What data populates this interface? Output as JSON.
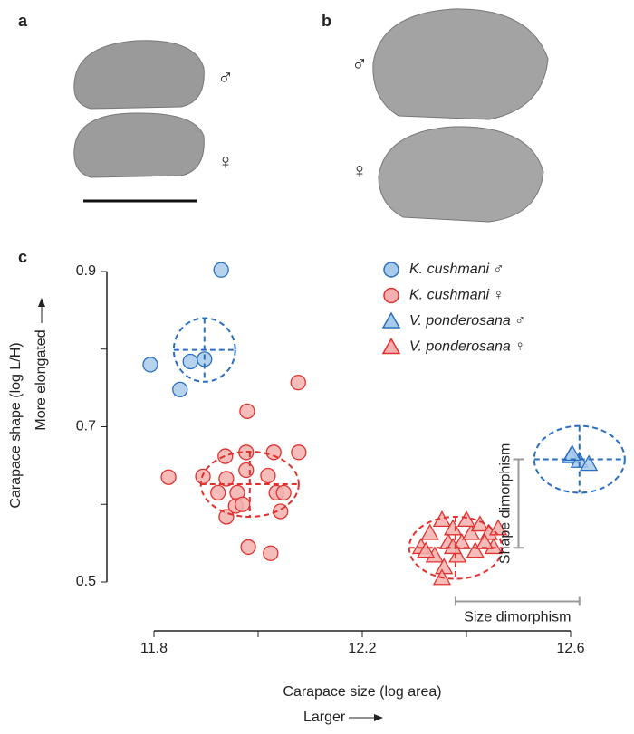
{
  "panels": [
    {
      "label": "a",
      "symbols": [
        "♂",
        "♀"
      ]
    },
    {
      "label": "b",
      "symbols": [
        "♂",
        "♀"
      ]
    }
  ],
  "chart_data": {
    "type": "scatter",
    "panel_label": "c",
    "x_label": "Carapace size (log area)",
    "x_direction": "Larger",
    "y_label": "Carapace shape (log L/H)",
    "y_direction": "More elongated",
    "xlim": [
      11.8,
      12.6
    ],
    "xticks": [
      11.8,
      12.2,
      12.6
    ],
    "xminor_ticks": [
      12.0,
      12.4
    ],
    "ylim": [
      0.5,
      0.9
    ],
    "yticks": [
      0.9,
      0.7,
      0.5
    ],
    "yminor_ticks": [
      0.8,
      0.6
    ],
    "legend": "upper right",
    "series": [
      {
        "name": "K. cushmani ♂",
        "marker": "circle",
        "color": "#2a6fbf",
        "fill": "#a9cbeb",
        "x": [
          11.929,
          11.793,
          11.85,
          11.87,
          11.897
        ],
        "y": [
          0.902,
          0.78,
          0.748,
          0.784,
          0.787
        ],
        "ellipse": {
          "center": [
            11.897,
            0.799
          ],
          "radius": [
            0.059,
            0.041
          ]
        }
      },
      {
        "name": "K. cushmani ♀",
        "marker": "circle",
        "color": "#e0312f",
        "fill": "#f3b0ae",
        "x": [
          12.077,
          11.828,
          11.894,
          11.937,
          11.979,
          11.977,
          11.977,
          11.939,
          11.923,
          11.96,
          11.957,
          11.97,
          11.939,
          12.019,
          12.035,
          12.049,
          12.03,
          12.078,
          12.043,
          11.981,
          12.024
        ],
        "y": [
          0.757,
          0.635,
          0.636,
          0.662,
          0.72,
          0.667,
          0.644,
          0.633,
          0.615,
          0.615,
          0.598,
          0.6,
          0.584,
          0.637,
          0.615,
          0.615,
          0.667,
          0.667,
          0.591,
          0.545,
          0.537
        ],
        "ellipse": {
          "center": [
            11.984,
            0.626
          ],
          "radius": [
            0.094,
            0.042
          ]
        }
      },
      {
        "name": "V. ponderosana ♂",
        "marker": "triangle",
        "color": "#2a6fbf",
        "fill": "#a9cbeb",
        "x": [
          12.6,
          12.617,
          12.635,
          12.603
        ],
        "y": [
          0.662,
          0.656,
          0.652,
          0.665
        ],
        "ellipse": {
          "center": [
            12.617,
            0.658
          ],
          "radius": [
            0.087,
            0.043
          ]
        }
      },
      {
        "name": "V. ponderosana ♀",
        "marker": "triangle",
        "color": "#e0312f",
        "fill": "#f3b0ae",
        "x": [
          12.313,
          12.33,
          12.353,
          12.365,
          12.339,
          12.374,
          12.391,
          12.409,
          12.426,
          12.443,
          12.452,
          12.417,
          12.383,
          12.357,
          12.353,
          12.322,
          12.4,
          12.435,
          12.374,
          12.461
        ],
        "y": [
          0.545,
          0.563,
          0.58,
          0.551,
          0.534,
          0.569,
          0.551,
          0.563,
          0.574,
          0.563,
          0.545,
          0.54,
          0.534,
          0.519,
          0.505,
          0.54,
          0.58,
          0.551,
          0.545,
          0.569
        ],
        "ellipse": {
          "center": [
            12.379,
            0.544
          ],
          "radius": [
            0.089,
            0.04
          ]
        }
      }
    ],
    "annotations": [
      {
        "text": "Shape dimorphism",
        "axis": "y",
        "range": [
          0.544,
          0.658
        ],
        "at": 12.5
      },
      {
        "text": "Size dimorphism",
        "axis": "x",
        "range": [
          12.379,
          12.617
        ],
        "at": 0.475
      }
    ]
  }
}
